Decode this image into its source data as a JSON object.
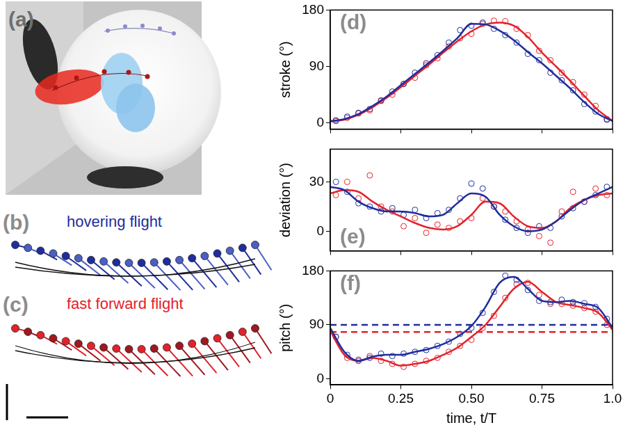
{
  "panels": [
    {
      "label": "(a)"
    },
    {
      "label": "(b)",
      "title": "hovering flight",
      "color": "#1f2d9e"
    },
    {
      "label": "(c)",
      "title": "fast forward flight",
      "color": "#e3222b"
    }
  ],
  "chart_data": [
    {
      "type": "line",
      "title": "(d)",
      "y_label": "stroke (°)",
      "xlim": [
        0,
        1
      ],
      "xticks": [
        0,
        0.25,
        {
          "value": 0.5,
          "label": "0.50"
        },
        0.75,
        {
          "value": 1,
          "label": "1.0"
        }
      ],
      "ylim": [
        -10,
        180
      ],
      "yticks": [
        0,
        90,
        180
      ],
      "grid": false,
      "tick_labels": "y",
      "x": [
        0,
        0.05,
        0.1,
        0.15,
        0.2,
        0.25,
        0.3,
        0.35,
        0.4,
        0.45,
        0.5,
        0.55,
        0.6,
        0.65,
        0.7,
        0.75,
        0.8,
        0.85,
        0.9,
        0.95,
        1
      ],
      "series": [
        {
          "type": "scatter",
          "color": "#1f2d9e",
          "marker": "circle_open",
          "x": [
            0.02,
            0.06,
            0.1,
            0.14,
            0.18,
            0.22,
            0.26,
            0.3,
            0.34,
            0.38,
            0.42,
            0.46,
            0.5,
            0.54,
            0.58,
            0.62,
            0.66,
            0.7,
            0.74,
            0.78,
            0.82,
            0.86,
            0.9,
            0.94,
            0.98
          ],
          "values": [
            4,
            10,
            16,
            22,
            35,
            50,
            62,
            80,
            95,
            108,
            128,
            148,
            155,
            160,
            150,
            140,
            128,
            110,
            100,
            80,
            68,
            52,
            30,
            18,
            5
          ]
        },
        {
          "type": "scatter",
          "color": "#e3222b",
          "marker": "circle_open",
          "x": [
            0.02,
            0.06,
            0.1,
            0.14,
            0.18,
            0.22,
            0.26,
            0.3,
            0.34,
            0.38,
            0.42,
            0.46,
            0.5,
            0.54,
            0.58,
            0.62,
            0.66,
            0.7,
            0.74,
            0.78,
            0.82,
            0.86,
            0.9,
            0.94,
            0.98
          ],
          "values": [
            3,
            8,
            15,
            20,
            36,
            45,
            62,
            72,
            92,
            103,
            122,
            135,
            142,
            158,
            163,
            162,
            150,
            140,
            115,
            100,
            80,
            65,
            45,
            27,
            6
          ]
        },
        {
          "type": "line",
          "color": "#1f2d9e",
          "line_style": "solid",
          "values": [
            3,
            6,
            14,
            27,
            42,
            60,
            78,
            96,
            115,
            135,
            158,
            157,
            147,
            132,
            113,
            95,
            75,
            55,
            33,
            14,
            3
          ]
        },
        {
          "type": "line",
          "color": "#e3222b",
          "line_style": "solid",
          "values": [
            2,
            5,
            13,
            25,
            40,
            57,
            75,
            93,
            112,
            130,
            146,
            157,
            160,
            155,
            137,
            112,
            90,
            67,
            43,
            20,
            3
          ]
        }
      ]
    },
    {
      "type": "line",
      "title": "(e)",
      "y_label": "deviation (°)",
      "xlim": [
        0,
        1
      ],
      "xticks": [
        0,
        0.25,
        {
          "value": 0.5,
          "label": "0.50"
        },
        0.75,
        {
          "value": 1,
          "label": "1.0"
        }
      ],
      "ylim": [
        -12,
        50
      ],
      "yticks": [
        0,
        30
      ],
      "grid": false,
      "tick_labels": "y",
      "x": [
        0,
        0.05,
        0.1,
        0.15,
        0.2,
        0.25,
        0.3,
        0.35,
        0.4,
        0.45,
        0.5,
        0.55,
        0.6,
        0.65,
        0.7,
        0.75,
        0.8,
        0.85,
        0.9,
        0.95,
        1
      ],
      "series": [
        {
          "type": "scatter",
          "color": "#1f2d9e",
          "marker": "circle_open",
          "x": [
            0.02,
            0.06,
            0.1,
            0.14,
            0.18,
            0.22,
            0.26,
            0.3,
            0.34,
            0.38,
            0.42,
            0.46,
            0.5,
            0.54,
            0.58,
            0.62,
            0.66,
            0.7,
            0.74,
            0.78,
            0.82,
            0.86,
            0.9,
            0.94,
            0.98
          ],
          "values": [
            30,
            24,
            17,
            15,
            12,
            14,
            10,
            13,
            8,
            11,
            13,
            20,
            29,
            26,
            15,
            7,
            2,
            -1,
            3,
            2,
            9,
            14,
            18,
            22,
            27
          ]
        },
        {
          "type": "scatter",
          "color": "#e3222b",
          "marker": "circle_open",
          "x": [
            0.02,
            0.06,
            0.1,
            0.14,
            0.18,
            0.22,
            0.26,
            0.3,
            0.34,
            0.38,
            0.42,
            0.46,
            0.5,
            0.54,
            0.58,
            0.62,
            0.66,
            0.7,
            0.74,
            0.78,
            0.82,
            0.86,
            0.9,
            0.94,
            0.98
          ],
          "values": [
            22,
            30,
            20,
            34,
            15,
            12,
            3,
            8,
            -1,
            4,
            2,
            6,
            8,
            20,
            15,
            12,
            6,
            1,
            -3,
            -7,
            12,
            24,
            18,
            26,
            22
          ]
        },
        {
          "type": "line",
          "color": "#1f2d9e",
          "line_style": "solid",
          "values": [
            27,
            25,
            18,
            14,
            12,
            12,
            11,
            9,
            10,
            17,
            23,
            21,
            10,
            3,
            0,
            1,
            6,
            13,
            19,
            23,
            27
          ]
        },
        {
          "type": "line",
          "color": "#e3222b",
          "line_style": "solid",
          "values": [
            23,
            25,
            24,
            18,
            13,
            9,
            5,
            2,
            1,
            3,
            10,
            18,
            17,
            9,
            3,
            2,
            6,
            14,
            19,
            22,
            23
          ]
        }
      ]
    },
    {
      "type": "line",
      "title": "(f)",
      "y_label": "pitch (°)",
      "x_label": "time, t/T",
      "xlim": [
        0,
        1
      ],
      "xticks": [
        0,
        0.25,
        {
          "value": 0.5,
          "label": "0.50"
        },
        0.75,
        {
          "value": 1,
          "label": "1.0"
        }
      ],
      "ylim": [
        -10,
        180
      ],
      "yticks": [
        0,
        90,
        180
      ],
      "grid": false,
      "tick_labels": true,
      "x": [
        0,
        0.05,
        0.1,
        0.15,
        0.2,
        0.25,
        0.3,
        0.35,
        0.4,
        0.45,
        0.5,
        0.55,
        0.6,
        0.65,
        0.7,
        0.75,
        0.8,
        0.85,
        0.9,
        0.95,
        1
      ],
      "series": [
        {
          "type": "scatter",
          "color": "#1f2d9e",
          "marker": "circle_open",
          "x": [
            0.02,
            0.06,
            0.1,
            0.14,
            0.18,
            0.22,
            0.26,
            0.3,
            0.34,
            0.38,
            0.42,
            0.46,
            0.5,
            0.54,
            0.58,
            0.62,
            0.66,
            0.7,
            0.74,
            0.78,
            0.82,
            0.86,
            0.9,
            0.94,
            0.98
          ],
          "values": [
            70,
            40,
            30,
            35,
            42,
            38,
            42,
            45,
            48,
            55,
            62,
            75,
            85,
            110,
            145,
            172,
            165,
            148,
            130,
            128,
            132,
            128,
            126,
            120,
            100
          ]
        },
        {
          "type": "scatter",
          "color": "#e3222b",
          "marker": "circle_open",
          "x": [
            0.02,
            0.06,
            0.1,
            0.14,
            0.18,
            0.22,
            0.26,
            0.3,
            0.34,
            0.38,
            0.42,
            0.46,
            0.5,
            0.54,
            0.58,
            0.62,
            0.66,
            0.7,
            0.74,
            0.78,
            0.82,
            0.86,
            0.9,
            0.94,
            0.98
          ],
          "values": [
            70,
            35,
            32,
            38,
            30,
            25,
            20,
            25,
            30,
            35,
            45,
            55,
            65,
            85,
            105,
            135,
            158,
            160,
            140,
            125,
            125,
            122,
            118,
            112,
            90
          ]
        },
        {
          "type": "line",
          "color": "#1f2d9e",
          "line_style": "solid",
          "values": [
            85,
            45,
            30,
            37,
            40,
            40,
            45,
            50,
            58,
            70,
            88,
            120,
            160,
            170,
            150,
            130,
            128,
            130,
            125,
            118,
            85
          ]
        },
        {
          "type": "line",
          "color": "#e3222b",
          "line_style": "solid",
          "values": [
            80,
            40,
            30,
            35,
            30,
            22,
            25,
            30,
            40,
            52,
            70,
            90,
            120,
            150,
            162,
            145,
            128,
            123,
            118,
            110,
            82
          ]
        },
        {
          "type": "line",
          "color": "#1f2d9e",
          "line_style": "dashed",
          "x": [
            0,
            1
          ],
          "values": [
            90,
            90
          ]
        },
        {
          "type": "line",
          "color": "#e3222b",
          "line_style": "dashed",
          "x": [
            0,
            1
          ],
          "values": [
            78,
            78
          ]
        }
      ]
    }
  ]
}
